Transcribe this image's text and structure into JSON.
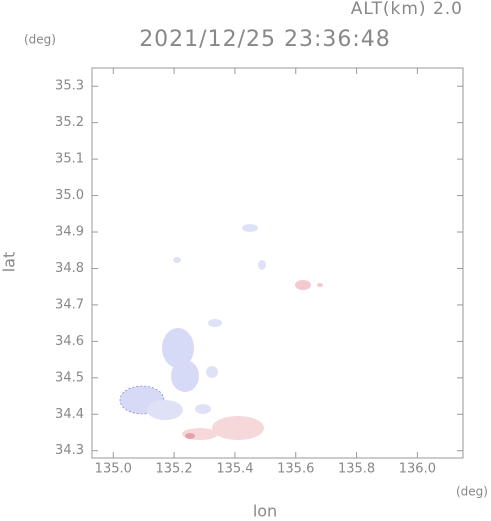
{
  "chart_data": {
    "type": "map",
    "title": "2021/12/25 23:36:48",
    "subtitle": "ALT(km) 2.0",
    "y_unit": "(deg)",
    "x_unit": "(deg)",
    "xlabel": "lon",
    "ylabel": "lat",
    "xlim": [
      134.93,
      136.15
    ],
    "xticks": [
      {
        "value": 135.0,
        "label": "135.0"
      },
      135.2,
      135.4,
      135.6,
      135.8,
      {
        "value": 136.0,
        "label": "136.0"
      }
    ],
    "ylim": [
      34.28,
      35.35
    ],
    "yticks": [
      34.3,
      34.4,
      34.5,
      34.6,
      34.7,
      34.8,
      34.9,
      {
        "value": 35.0,
        "label": "35.0"
      },
      35.1,
      35.2,
      35.3
    ]
  }
}
